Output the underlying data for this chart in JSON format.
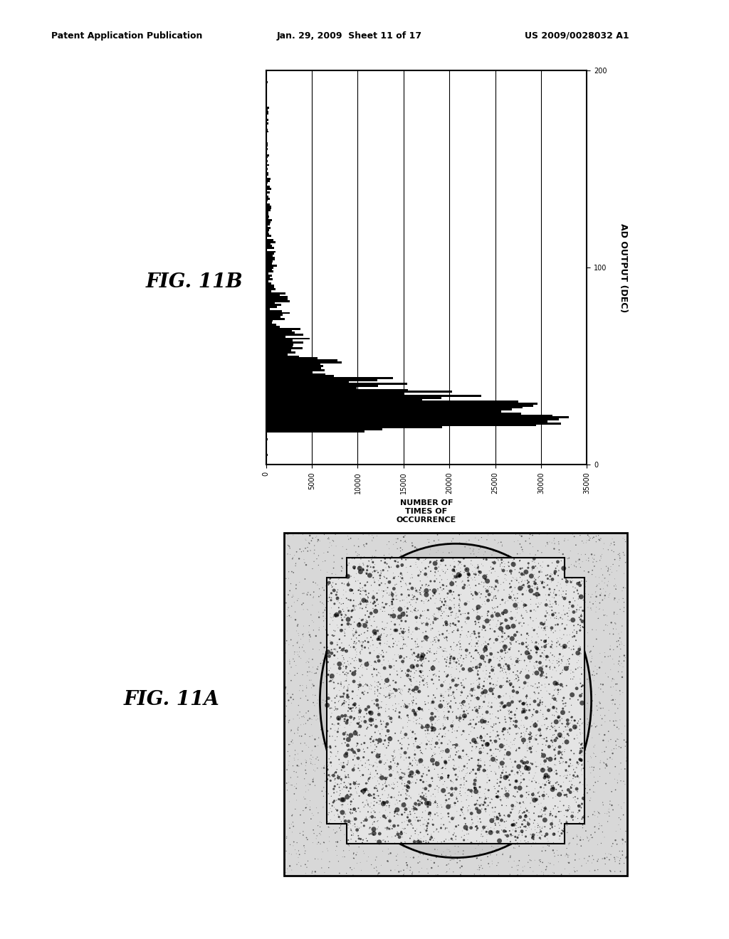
{
  "page_title_left": "Patent Application Publication",
  "page_title_center": "Jan. 29, 2009  Sheet 11 of 17",
  "page_title_right": "US 2009/0028032 A1",
  "fig_11b_label": "FIG. 11B",
  "fig_11a_label": "FIG. 11A",
  "fig11b_xlabel": "AD OUTPUT (DEC)",
  "fig11b_ylabel": "NUMBER OF\nTIMES OF\nOCCURRENCE",
  "fig11b_xlim": [
    0,
    200
  ],
  "fig11b_ylim": [
    0,
    35000
  ],
  "fig11b_xticks": [
    0,
    100,
    200
  ],
  "fig11b_yticks": [
    0,
    5000,
    10000,
    15000,
    20000,
    25000,
    30000,
    35000
  ],
  "background_color": "#ffffff",
  "text_color": "#000000",
  "header_fontsize": 9,
  "label_fontsize": 9,
  "fig_label_fontsize": 20
}
